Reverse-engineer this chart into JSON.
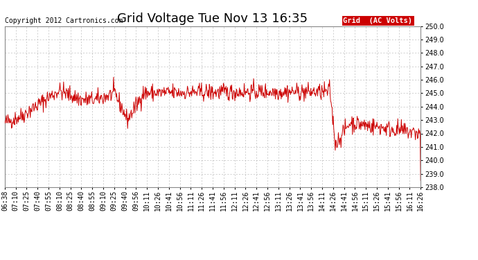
{
  "title": "Grid Voltage Tue Nov 13 16:35",
  "copyright": "Copyright 2012 Cartronics.com",
  "legend_label": "Grid  (AC Volts)",
  "legend_bg": "#cc0000",
  "legend_text_color": "#ffffff",
  "line_color": "#cc0000",
  "background_color": "#ffffff",
  "plot_bg_color": "#ffffff",
  "grid_color": "#bbbbbb",
  "ylim": [
    238.0,
    250.0
  ],
  "yticks": [
    238.0,
    239.0,
    240.0,
    241.0,
    242.0,
    243.0,
    244.0,
    245.0,
    246.0,
    247.0,
    248.0,
    249.0,
    250.0
  ],
  "xtick_labels": [
    "06:38",
    "07:10",
    "07:25",
    "07:40",
    "07:55",
    "08:10",
    "08:25",
    "08:40",
    "08:55",
    "09:10",
    "09:25",
    "09:40",
    "09:56",
    "10:11",
    "10:26",
    "10:41",
    "10:56",
    "11:11",
    "11:26",
    "11:41",
    "11:56",
    "12:11",
    "12:26",
    "12:41",
    "12:56",
    "13:11",
    "13:26",
    "13:41",
    "13:56",
    "14:11",
    "14:26",
    "14:41",
    "14:56",
    "15:11",
    "15:26",
    "15:41",
    "15:56",
    "16:11",
    "16:26"
  ],
  "title_fontsize": 13,
  "tick_fontsize": 7,
  "copyright_fontsize": 7,
  "legend_fontsize": 7.5,
  "figwidth": 6.9,
  "figheight": 3.75,
  "dpi": 100
}
